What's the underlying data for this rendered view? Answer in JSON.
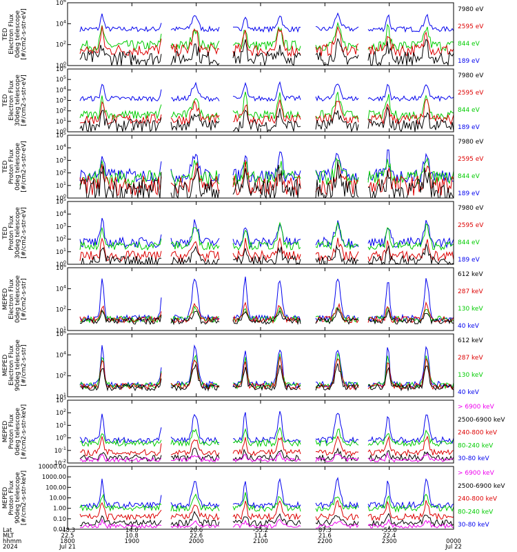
{
  "chart_data": [
    {
      "type": "line",
      "ylabel": [
        "TED",
        "Electron Flux",
        "0deg telescope",
        "[#/cm2-s-str-eV]"
      ],
      "yscale": "log",
      "ylim": [
        1,
        1000000
      ],
      "yticks": [
        {
          "label": "10",
          "exp": "6"
        },
        {
          "label": "10",
          "exp": "4"
        },
        {
          "label": "10",
          "exp": "2"
        },
        {
          "label": "10",
          "exp": "0"
        }
      ],
      "series": [
        {
          "name": "7980 eV",
          "color": "#000000",
          "baseline": 5,
          "noise": 0.7,
          "peak": 1.2
        },
        {
          "name": "2595 eV",
          "color": "#dd0000",
          "baseline": 30,
          "noise": 0.6,
          "peak": 1.8
        },
        {
          "name": "844 eV",
          "color": "#00cc00",
          "baseline": 80,
          "noise": 0.5,
          "peak": 1.7
        },
        {
          "name": "189 eV",
          "color": "#0000ee",
          "baseline": 3000,
          "noise": 0.25,
          "peak": 1.4
        }
      ]
    },
    {
      "type": "line",
      "ylabel": [
        "TED",
        "Electron Flux",
        "30deg telescope",
        "[#/cm2-s-str-eV]"
      ],
      "yscale": "log",
      "ylim": [
        1,
        1000000
      ],
      "yticks": [
        {
          "label": "10",
          "exp": "6"
        },
        {
          "label": "10",
          "exp": "5"
        },
        {
          "label": "10",
          "exp": "4"
        },
        {
          "label": "10",
          "exp": "3"
        },
        {
          "label": "10",
          "exp": "2"
        },
        {
          "label": "10",
          "exp": "1"
        },
        {
          "label": "10",
          "exp": "0"
        }
      ],
      "series": [
        {
          "name": "7980 eV",
          "color": "#000000",
          "baseline": 4,
          "noise": 0.6,
          "peak": 1.3
        },
        {
          "name": "2595 eV",
          "color": "#dd0000",
          "baseline": 15,
          "noise": 0.5,
          "peak": 1.6
        },
        {
          "name": "844 eV",
          "color": "#00cc00",
          "baseline": 40,
          "noise": 0.45,
          "peak": 1.8
        },
        {
          "name": "189 eV",
          "color": "#0000ee",
          "baseline": 1500,
          "noise": 0.25,
          "peak": 1.4
        }
      ]
    },
    {
      "type": "line",
      "ylabel": [
        "TED",
        "Proton Flux",
        "0deg telescope",
        "[#/cm2-s-str-eV]"
      ],
      "yscale": "log",
      "ylim": [
        1,
        100000
      ],
      "yticks": [
        {
          "label": "10",
          "exp": "5"
        },
        {
          "label": "10",
          "exp": "4"
        },
        {
          "label": "10",
          "exp": "3"
        },
        {
          "label": "10",
          "exp": "2"
        },
        {
          "label": "10",
          "exp": "1"
        },
        {
          "label": "10",
          "exp": "0"
        }
      ],
      "series": [
        {
          "name": "7980 eV",
          "color": "#000000",
          "baseline": 4,
          "noise": 0.9,
          "peak": 1.5
        },
        {
          "name": "2595 eV",
          "color": "#dd0000",
          "baseline": 10,
          "noise": 0.8,
          "peak": 1.5
        },
        {
          "name": "844 eV",
          "color": "#00cc00",
          "baseline": 40,
          "noise": 0.6,
          "peak": 1.2
        },
        {
          "name": "189 eV",
          "color": "#0000ee",
          "baseline": 60,
          "noise": 0.55,
          "peak": 1.8
        }
      ]
    },
    {
      "type": "line",
      "ylabel": [
        "TED",
        "Proton Flux",
        "30deg telescope",
        "[#/cm2-s-str-eV]"
      ],
      "yscale": "log",
      "ylim": [
        1,
        1000000
      ],
      "yticks": [
        {
          "label": "10",
          "exp": "5"
        },
        {
          "label": "10",
          "exp": "4"
        },
        {
          "label": "10",
          "exp": "3"
        },
        {
          "label": "10",
          "exp": "2"
        },
        {
          "label": "10",
          "exp": "1"
        },
        {
          "label": "10",
          "exp": "0"
        }
      ],
      "series": [
        {
          "name": "7980 eV",
          "color": "#000000",
          "baseline": 2,
          "noise": 0.5,
          "peak": 1.2
        },
        {
          "name": "2595 eV",
          "color": "#dd0000",
          "baseline": 6,
          "noise": 0.5,
          "peak": 1.3
        },
        {
          "name": "844 eV",
          "color": "#00cc00",
          "baseline": 60,
          "noise": 0.4,
          "peak": 1.8
        },
        {
          "name": "189 eV",
          "color": "#0000ee",
          "baseline": 120,
          "noise": 0.5,
          "peak": 1.9
        }
      ]
    },
    {
      "type": "line",
      "ylabel": [
        "MEPED",
        "Electron Flux",
        "0deg telescope",
        "[#/cm2-s-str]"
      ],
      "yscale": "log",
      "ylim": [
        10,
        10000000
      ],
      "yticks": [
        {
          "label": "10",
          "exp": "6"
        },
        {
          "label": "10",
          "exp": "4"
        },
        {
          "label": "10",
          "exp": "2"
        },
        {
          "label": "10",
          "exp": "1"
        }
      ],
      "series": [
        {
          "name": "612 keV",
          "color": "#000000",
          "baseline": 80,
          "noise": 0.3,
          "peak": 1.0
        },
        {
          "name": "287 keV",
          "color": "#dd0000",
          "baseline": 110,
          "noise": 0.3,
          "peak": 1.4
        },
        {
          "name": "130 keV",
          "color": "#00cc00",
          "baseline": 120,
          "noise": 0.3,
          "peak": 1.0
        },
        {
          "name": "40 keV",
          "color": "#0000ee",
          "baseline": 150,
          "noise": 0.3,
          "peak": 3.8
        }
      ]
    },
    {
      "type": "line",
      "ylabel": [
        "MEPED",
        "Electron Flux",
        "90deg telescope",
        "[#/cm2-s-str]"
      ],
      "yscale": "log",
      "ylim": [
        10,
        10000000
      ],
      "yticks": [
        {
          "label": "10",
          "exp": "6"
        },
        {
          "label": "10",
          "exp": "4"
        },
        {
          "label": "10",
          "exp": "2"
        },
        {
          "label": "10",
          "exp": "1"
        }
      ],
      "series": [
        {
          "name": "612 keV",
          "color": "#000000",
          "baseline": 80,
          "noise": 0.3,
          "peak": 2.0
        },
        {
          "name": "287 keV",
          "color": "#dd0000",
          "baseline": 100,
          "noise": 0.3,
          "peak": 2.6
        },
        {
          "name": "130 keV",
          "color": "#00cc00",
          "baseline": 120,
          "noise": 0.3,
          "peak": 2.8
        },
        {
          "name": "40 keV",
          "color": "#0000ee",
          "baseline": 150,
          "noise": 0.3,
          "peak": 3.5
        }
      ]
    },
    {
      "type": "line",
      "ylabel": [
        "MEPED",
        "Proton Flux",
        "0deg telescope",
        "[#/cm2-s-str-keV]"
      ],
      "yscale": "log",
      "ylim": [
        0.01,
        10000
      ],
      "yticks": [
        {
          "label": "10",
          "exp": "3"
        },
        {
          "label": "10",
          "exp": "2"
        },
        {
          "label": "10",
          "exp": "1"
        },
        {
          "label": "10",
          "exp": "0"
        },
        {
          "label": "10",
          "exp": "-1"
        },
        {
          "label": "10",
          "exp": "-2"
        }
      ],
      "series": [
        {
          "name": "> 6900 keV",
          "color": "#ee00ee",
          "baseline": 0.02,
          "noise": 0.2,
          "peak": 0.5
        },
        {
          "name": "2500-6900 keV",
          "color": "#000000",
          "baseline": 0.03,
          "noise": 0.3,
          "peak": 0.7
        },
        {
          "name": "240-800 keV",
          "color": "#dd0000",
          "baseline": 0.1,
          "noise": 0.3,
          "peak": 1.4
        },
        {
          "name": "80-240 keV",
          "color": "#00cc00",
          "baseline": 0.8,
          "noise": 0.3,
          "peak": 1.2
        },
        {
          "name": "30-80 keV",
          "color": "#0000ee",
          "baseline": 1.5,
          "noise": 0.3,
          "peak": 2.5
        }
      ]
    },
    {
      "type": "line",
      "ylabel": [
        "MEPED",
        "Proton Flux",
        "90deg telescope",
        "[#/cm2-s-str-keV]"
      ],
      "yscale": "log",
      "ylim": [
        0.01,
        10000
      ],
      "yticks": [
        {
          "label": "10000.00"
        },
        {
          "label": "1000.00"
        },
        {
          "label": "100.00"
        },
        {
          "label": "10.00"
        },
        {
          "label": "1.00"
        },
        {
          "label": "0.10"
        },
        {
          "label": "0.01"
        }
      ],
      "series": [
        {
          "name": "> 6900 keV",
          "color": "#ee00ee",
          "baseline": 0.02,
          "noise": 0.2,
          "peak": 0.5
        },
        {
          "name": "2500-6900 keV",
          "color": "#000000",
          "baseline": 0.04,
          "noise": 0.3,
          "peak": 0.8
        },
        {
          "name": "240-800 keV",
          "color": "#dd0000",
          "baseline": 0.15,
          "noise": 0.3,
          "peak": 1.4
        },
        {
          "name": "80-240 keV",
          "color": "#00cc00",
          "baseline": 1.0,
          "noise": 0.3,
          "peak": 1.3
        },
        {
          "name": "30-80 keV",
          "color": "#0000ee",
          "baseline": 2,
          "noise": 0.3,
          "peak": 2.3
        }
      ]
    }
  ],
  "time_axis": {
    "row_labels": [
      "Lat",
      "MLT",
      "hhmm",
      "2024"
    ],
    "xlim": [
      "2024-07-21T18:00",
      "2024-07-22T00:00"
    ],
    "ticks": [
      {
        "time": "2024-07-21T18:00",
        "lat": "-48.3",
        "mlt": "22.5",
        "hhmm": "1800",
        "date": "Jul 21"
      },
      {
        "time": "2024-07-21T19:00",
        "lat": "14.0",
        "mlt": "10.8",
        "hhmm": "1900",
        "date": ""
      },
      {
        "time": "2024-07-21T20:00",
        "lat": "20.6",
        "mlt": "22.6",
        "hhmm": "2000",
        "date": ""
      },
      {
        "time": "2024-07-21T21:00",
        "lat": "-55.2",
        "mlt": "11.4",
        "hhmm": "2100",
        "date": ""
      },
      {
        "time": "2024-07-21T22:00",
        "lat": "87.3",
        "mlt": "21.6",
        "hhmm": "2200",
        "date": ""
      },
      {
        "time": "2024-07-21T23:00",
        "lat": "-55.0",
        "mlt": "22.4",
        "hhmm": "2300",
        "date": ""
      },
      {
        "time": "2024-07-22T00:00",
        "lat": "",
        "mlt": "",
        "hhmm": "0000",
        "date": "Jul 22"
      }
    ]
  }
}
